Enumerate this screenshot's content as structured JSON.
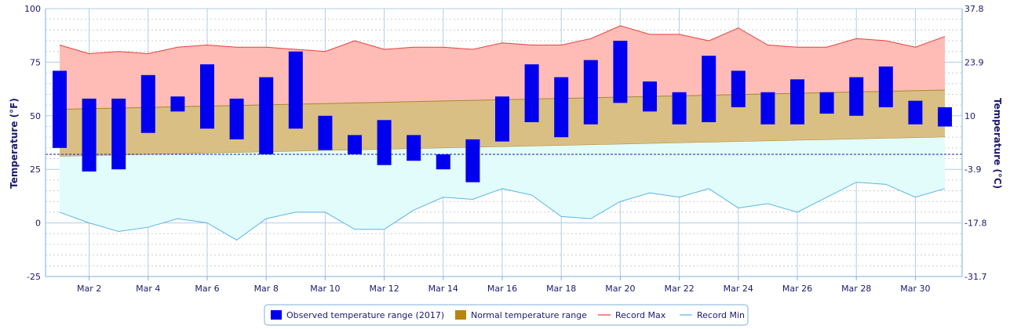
{
  "chart_data": {
    "type": "bar",
    "ylabel_left": "Temperature (°F)",
    "ylabel_right": "Temperature (°C)",
    "ylim": [
      -25,
      100
    ],
    "y_ticks_left": [
      100,
      75,
      50,
      25,
      0,
      -25
    ],
    "y_ticks_right": [
      "37.8",
      "23.9",
      "10",
      "-3.9",
      "-17.8",
      "-31.7"
    ],
    "x_tick_labels": [
      "Mar 2",
      "Mar 4",
      "Mar 6",
      "Mar 8",
      "Mar 10",
      "Mar 12",
      "Mar 14",
      "Mar 16",
      "Mar 18",
      "Mar 20",
      "Mar 22",
      "Mar 24",
      "Mar 26",
      "Mar 28",
      "Mar 30"
    ],
    "days": [
      1,
      2,
      3,
      4,
      5,
      6,
      7,
      8,
      9,
      10,
      11,
      12,
      13,
      14,
      15,
      16,
      17,
      18,
      19,
      20,
      21,
      22,
      23,
      24,
      25,
      26,
      27,
      28,
      29,
      30,
      31
    ],
    "freezing_line": 32,
    "series": [
      {
        "name": "Observed temperature range (2017)",
        "color": "#0000ee",
        "low": [
          35,
          24,
          25,
          42,
          52,
          44,
          39,
          32,
          44,
          34,
          32,
          27,
          29,
          25,
          19,
          38,
          47,
          40,
          46,
          56,
          52,
          46,
          47,
          54,
          46,
          46,
          51,
          50,
          54,
          46,
          45
        ],
        "high": [
          71,
          58,
          58,
          69,
          59,
          74,
          58,
          68,
          80,
          50,
          41,
          48,
          41,
          32,
          39,
          59,
          74,
          68,
          76,
          85,
          66,
          61,
          78,
          71,
          61,
          67,
          61,
          68,
          73,
          57,
          54
        ]
      },
      {
        "name": "Normal temperature range",
        "color": "#b8860b",
        "low": [
          31,
          31.3,
          31.6,
          31.9,
          32.2,
          32.5,
          32.8,
          33.1,
          33.4,
          33.7,
          34,
          34.3,
          34.6,
          34.9,
          35.2,
          35.5,
          35.8,
          36.1,
          36.4,
          36.7,
          37,
          37.3,
          37.6,
          37.9,
          38.2,
          38.5,
          38.8,
          39.1,
          39.4,
          39.7,
          40
        ],
        "high": [
          53,
          53.3,
          53.6,
          53.9,
          54.2,
          54.5,
          54.8,
          55.1,
          55.4,
          55.7,
          56,
          56.3,
          56.6,
          56.9,
          57.2,
          57.5,
          57.8,
          58.1,
          58.4,
          58.7,
          59,
          59.3,
          59.6,
          59.9,
          60.2,
          60.5,
          60.8,
          61.1,
          61.4,
          61.7,
          62
        ]
      },
      {
        "name": "Record Max",
        "color": "#e8403a",
        "values": [
          83,
          79,
          80,
          79,
          82,
          83,
          82,
          82,
          81,
          80,
          85,
          81,
          82,
          82,
          81,
          84,
          83,
          83,
          86,
          92,
          88,
          88,
          85,
          91,
          83,
          82,
          82,
          86,
          85,
          82,
          87
        ]
      },
      {
        "name": "Record Min",
        "color": "#5ab4e6",
        "values": [
          5,
          0,
          -4,
          -2,
          2,
          0,
          -8,
          2,
          5,
          5,
          -3,
          -3,
          6,
          12,
          11,
          16,
          13,
          3,
          2,
          10,
          14,
          12,
          16,
          7,
          9,
          5,
          12,
          19,
          18,
          12,
          16
        ]
      }
    ],
    "legend_position": "bottom-center",
    "grid": true
  }
}
